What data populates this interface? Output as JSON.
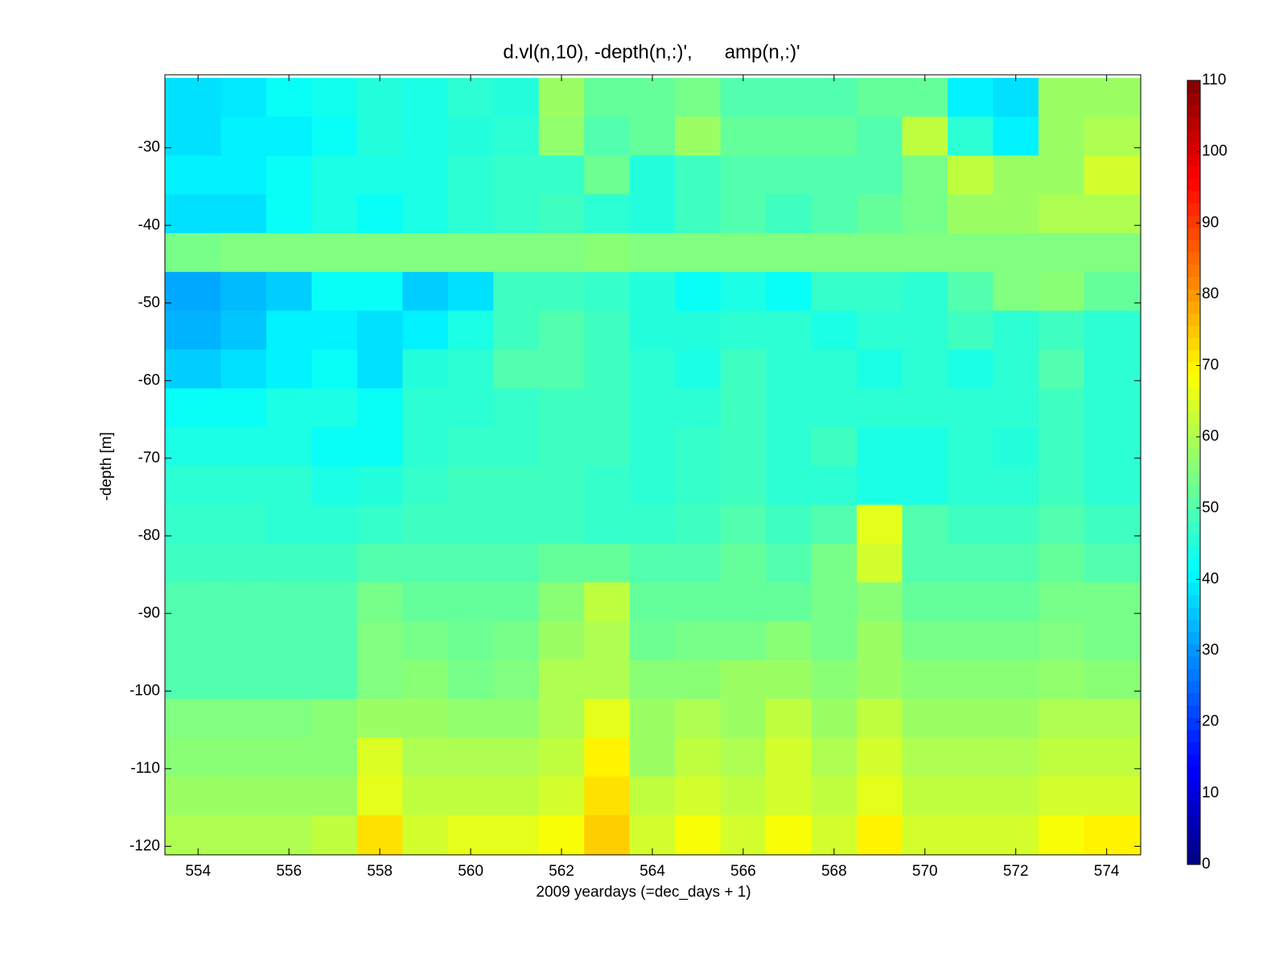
{
  "chart_data": {
    "type": "heatmap",
    "title": "d.vl(n,10), -depth(n,:)',      amp(n,:)'",
    "xlabel": "2009 yeardays (=dec_days + 1)",
    "ylabel": "-depth [m]",
    "colormap": "jet",
    "x": [
      554,
      555,
      556,
      557,
      558,
      559,
      560,
      561,
      562,
      563,
      564,
      565,
      566,
      567,
      568,
      569,
      570,
      571,
      572,
      573,
      574
    ],
    "y": [
      -23.5,
      -28.5,
      -33.5,
      -38.5,
      -43.5,
      -48.5,
      -53.5,
      -58.5,
      -63.5,
      -68.5,
      -73.5,
      -78.5,
      -83.5,
      -88.5,
      -93.5,
      -98.5,
      -103.5,
      -108.5,
      -113.5,
      -118.5
    ],
    "z": [
      [
        38,
        39,
        42,
        43,
        45,
        44,
        46,
        45,
        58,
        52,
        52,
        54,
        50,
        50,
        50,
        52,
        52,
        40,
        38,
        58,
        58
      ],
      [
        38,
        40,
        40,
        42,
        45,
        44,
        45,
        46,
        57,
        50,
        52,
        58,
        52,
        52,
        52,
        50,
        62,
        46,
        40,
        58,
        60
      ],
      [
        40,
        40,
        42,
        44,
        44,
        44,
        46,
        47,
        47,
        53,
        45,
        48,
        50,
        50,
        50,
        50,
        54,
        62,
        58,
        58,
        64
      ],
      [
        38,
        38,
        42,
        44,
        42,
        44,
        46,
        47,
        48,
        46,
        45,
        48,
        50,
        48,
        50,
        52,
        54,
        58,
        58,
        60,
        60
      ],
      [
        54,
        55,
        55,
        55,
        55,
        55,
        55,
        55,
        55,
        56,
        55,
        55,
        55,
        55,
        55,
        55,
        55,
        55,
        55,
        55,
        55
      ],
      [
        32,
        34,
        36,
        42,
        42,
        36,
        38,
        48,
        48,
        47,
        45,
        42,
        44,
        42,
        47,
        47,
        46,
        50,
        55,
        56,
        52
      ],
      [
        33,
        35,
        40,
        40,
        38,
        40,
        44,
        48,
        50,
        48,
        45,
        45,
        46,
        46,
        44,
        46,
        46,
        48,
        46,
        48,
        46
      ],
      [
        36,
        38,
        40,
        42,
        38,
        45,
        46,
        50,
        50,
        48,
        46,
        44,
        48,
        46,
        46,
        44,
        46,
        44,
        46,
        50,
        46
      ],
      [
        42,
        42,
        44,
        44,
        42,
        46,
        46,
        47,
        48,
        48,
        46,
        46,
        48,
        46,
        46,
        46,
        46,
        46,
        46,
        48,
        46
      ],
      [
        44,
        44,
        44,
        42,
        42,
        46,
        47,
        47,
        48,
        48,
        46,
        47,
        48,
        46,
        48,
        44,
        44,
        46,
        45,
        48,
        46
      ],
      [
        46,
        46,
        46,
        44,
        45,
        47,
        48,
        48,
        48,
        47,
        46,
        47,
        48,
        46,
        46,
        44,
        44,
        46,
        46,
        48,
        46
      ],
      [
        47,
        47,
        46,
        46,
        47,
        48,
        48,
        48,
        48,
        47,
        47,
        48,
        50,
        48,
        50,
        66,
        50,
        48,
        48,
        50,
        48
      ],
      [
        48,
        48,
        48,
        48,
        50,
        50,
        50,
        50,
        52,
        52,
        50,
        50,
        52,
        50,
        54,
        64,
        50,
        50,
        50,
        52,
        50
      ],
      [
        50,
        50,
        50,
        50,
        54,
        52,
        52,
        52,
        56,
        62,
        52,
        52,
        52,
        52,
        54,
        56,
        52,
        52,
        52,
        54,
        54
      ],
      [
        50,
        50,
        50,
        50,
        55,
        54,
        53,
        54,
        58,
        60,
        53,
        54,
        54,
        56,
        54,
        58,
        54,
        54,
        54,
        55,
        54
      ],
      [
        50,
        50,
        50,
        50,
        55,
        56,
        54,
        55,
        60,
        60,
        56,
        56,
        58,
        58,
        56,
        58,
        56,
        56,
        56,
        57,
        56
      ],
      [
        55,
        55,
        55,
        56,
        58,
        58,
        57,
        57,
        60,
        66,
        58,
        60,
        58,
        62,
        58,
        62,
        58,
        58,
        58,
        60,
        60
      ],
      [
        56,
        56,
        56,
        56,
        65,
        60,
        60,
        60,
        62,
        70,
        58,
        62,
        60,
        64,
        60,
        64,
        60,
        60,
        60,
        62,
        62
      ],
      [
        58,
        58,
        58,
        58,
        66,
        62,
        62,
        62,
        64,
        72,
        62,
        64,
        62,
        64,
        62,
        66,
        62,
        62,
        62,
        64,
        64
      ],
      [
        60,
        60,
        60,
        62,
        72,
        64,
        66,
        66,
        68,
        74,
        64,
        68,
        64,
        68,
        64,
        70,
        64,
        64,
        64,
        68,
        70
      ]
    ],
    "xlim": [
      553.27,
      574.75
    ],
    "xticks": [
      554,
      556,
      558,
      560,
      562,
      564,
      566,
      568,
      570,
      572,
      574
    ],
    "ylim": [
      -121.1,
      -20.6
    ],
    "yticks": [
      -120,
      -110,
      -100,
      -90,
      -80,
      -70,
      -60,
      -50,
      -40,
      -30
    ],
    "clim": [
      0,
      110
    ],
    "cticks": [
      0,
      10,
      20,
      30,
      40,
      50,
      60,
      70,
      80,
      90,
      100,
      110
    ]
  }
}
